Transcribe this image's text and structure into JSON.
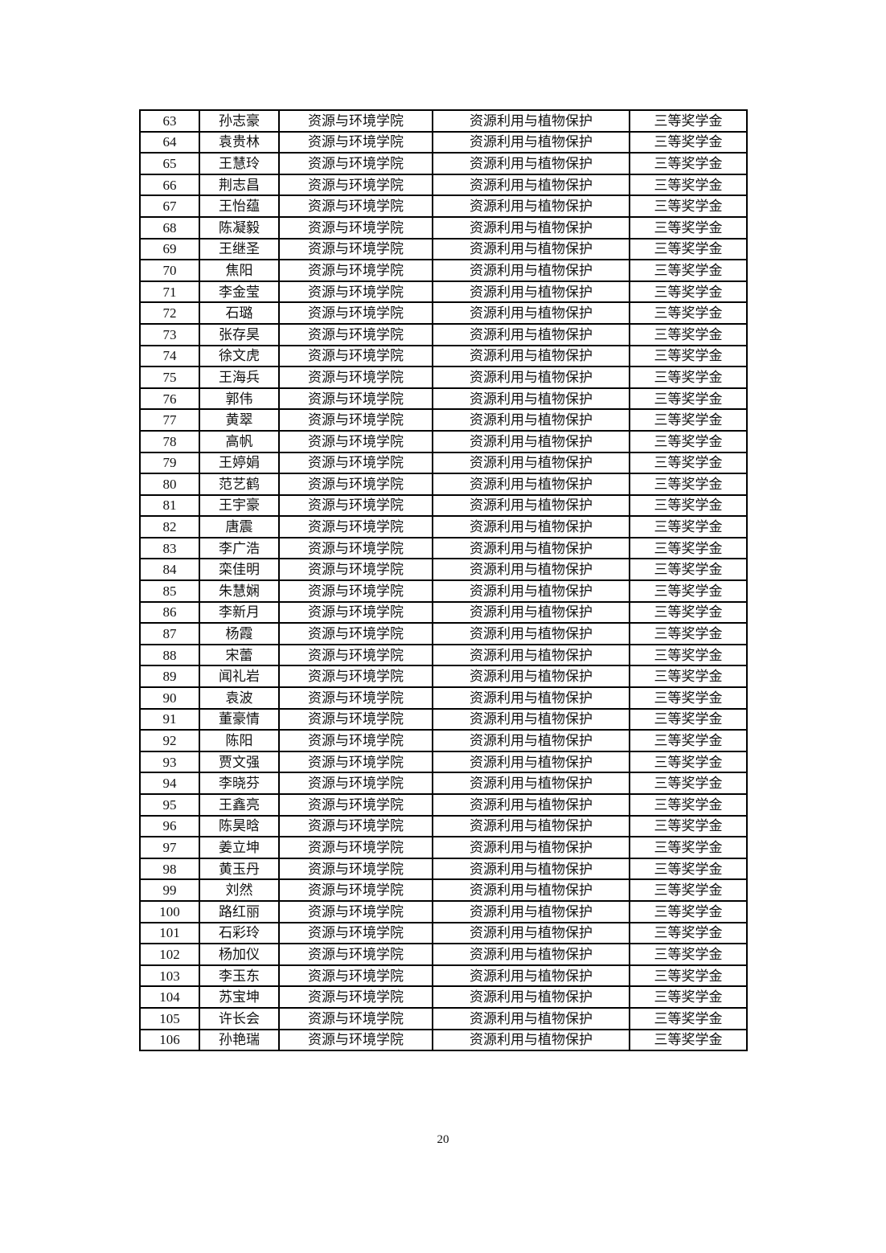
{
  "document": {
    "page_number": "20",
    "table": {
      "rows": [
        [
          "63",
          "孙志豪",
          "资源与环境学院",
          "资源利用与植物保护",
          "三等奖学金"
        ],
        [
          "64",
          "袁贵林",
          "资源与环境学院",
          "资源利用与植物保护",
          "三等奖学金"
        ],
        [
          "65",
          "王慧玲",
          "资源与环境学院",
          "资源利用与植物保护",
          "三等奖学金"
        ],
        [
          "66",
          "荆志昌",
          "资源与环境学院",
          "资源利用与植物保护",
          "三等奖学金"
        ],
        [
          "67",
          "王怡蕴",
          "资源与环境学院",
          "资源利用与植物保护",
          "三等奖学金"
        ],
        [
          "68",
          "陈凝毅",
          "资源与环境学院",
          "资源利用与植物保护",
          "三等奖学金"
        ],
        [
          "69",
          "王继圣",
          "资源与环境学院",
          "资源利用与植物保护",
          "三等奖学金"
        ],
        [
          "70",
          "焦阳",
          "资源与环境学院",
          "资源利用与植物保护",
          "三等奖学金"
        ],
        [
          "71",
          "李金莹",
          "资源与环境学院",
          "资源利用与植物保护",
          "三等奖学金"
        ],
        [
          "72",
          "石璐",
          "资源与环境学院",
          "资源利用与植物保护",
          "三等奖学金"
        ],
        [
          "73",
          "张存昊",
          "资源与环境学院",
          "资源利用与植物保护",
          "三等奖学金"
        ],
        [
          "74",
          "徐文虎",
          "资源与环境学院",
          "资源利用与植物保护",
          "三等奖学金"
        ],
        [
          "75",
          "王海兵",
          "资源与环境学院",
          "资源利用与植物保护",
          "三等奖学金"
        ],
        [
          "76",
          "郭伟",
          "资源与环境学院",
          "资源利用与植物保护",
          "三等奖学金"
        ],
        [
          "77",
          "黄翠",
          "资源与环境学院",
          "资源利用与植物保护",
          "三等奖学金"
        ],
        [
          "78",
          "高帆",
          "资源与环境学院",
          "资源利用与植物保护",
          "三等奖学金"
        ],
        [
          "79",
          "王婷娟",
          "资源与环境学院",
          "资源利用与植物保护",
          "三等奖学金"
        ],
        [
          "80",
          "范艺鹤",
          "资源与环境学院",
          "资源利用与植物保护",
          "三等奖学金"
        ],
        [
          "81",
          "王宇豪",
          "资源与环境学院",
          "资源利用与植物保护",
          "三等奖学金"
        ],
        [
          "82",
          "唐震",
          "资源与环境学院",
          "资源利用与植物保护",
          "三等奖学金"
        ],
        [
          "83",
          "李广浩",
          "资源与环境学院",
          "资源利用与植物保护",
          "三等奖学金"
        ],
        [
          "84",
          "栾佳明",
          "资源与环境学院",
          "资源利用与植物保护",
          "三等奖学金"
        ],
        [
          "85",
          "朱慧娴",
          "资源与环境学院",
          "资源利用与植物保护",
          "三等奖学金"
        ],
        [
          "86",
          "李新月",
          "资源与环境学院",
          "资源利用与植物保护",
          "三等奖学金"
        ],
        [
          "87",
          "杨霞",
          "资源与环境学院",
          "资源利用与植物保护",
          "三等奖学金"
        ],
        [
          "88",
          "宋蕾",
          "资源与环境学院",
          "资源利用与植物保护",
          "三等奖学金"
        ],
        [
          "89",
          "闻礼岩",
          "资源与环境学院",
          "资源利用与植物保护",
          "三等奖学金"
        ],
        [
          "90",
          "袁波",
          "资源与环境学院",
          "资源利用与植物保护",
          "三等奖学金"
        ],
        [
          "91",
          "董豪情",
          "资源与环境学院",
          "资源利用与植物保护",
          "三等奖学金"
        ],
        [
          "92",
          "陈阳",
          "资源与环境学院",
          "资源利用与植物保护",
          "三等奖学金"
        ],
        [
          "93",
          "贾文强",
          "资源与环境学院",
          "资源利用与植物保护",
          "三等奖学金"
        ],
        [
          "94",
          "李晓芬",
          "资源与环境学院",
          "资源利用与植物保护",
          "三等奖学金"
        ],
        [
          "95",
          "王鑫亮",
          "资源与环境学院",
          "资源利用与植物保护",
          "三等奖学金"
        ],
        [
          "96",
          "陈昊晗",
          "资源与环境学院",
          "资源利用与植物保护",
          "三等奖学金"
        ],
        [
          "97",
          "姜立坤",
          "资源与环境学院",
          "资源利用与植物保护",
          "三等奖学金"
        ],
        [
          "98",
          "黄玉丹",
          "资源与环境学院",
          "资源利用与植物保护",
          "三等奖学金"
        ],
        [
          "99",
          "刘然",
          "资源与环境学院",
          "资源利用与植物保护",
          "三等奖学金"
        ],
        [
          "100",
          "路红丽",
          "资源与环境学院",
          "资源利用与植物保护",
          "三等奖学金"
        ],
        [
          "101",
          "石彩玲",
          "资源与环境学院",
          "资源利用与植物保护",
          "三等奖学金"
        ],
        [
          "102",
          "杨加仪",
          "资源与环境学院",
          "资源利用与植物保护",
          "三等奖学金"
        ],
        [
          "103",
          "李玉东",
          "资源与环境学院",
          "资源利用与植物保护",
          "三等奖学金"
        ],
        [
          "104",
          "苏宝坤",
          "资源与环境学院",
          "资源利用与植物保护",
          "三等奖学金"
        ],
        [
          "105",
          "许长会",
          "资源与环境学院",
          "资源利用与植物保护",
          "三等奖学金"
        ],
        [
          "106",
          "孙艳瑞",
          "资源与环境学院",
          "资源利用与植物保护",
          "三等奖学金"
        ]
      ]
    }
  }
}
